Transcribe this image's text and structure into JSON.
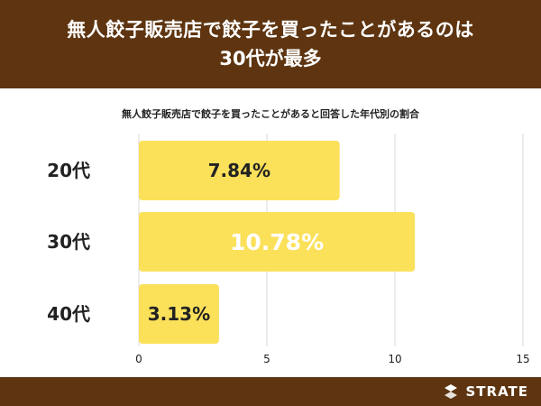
{
  "header": {
    "title_line1": "無人餃子販売店で餃子を買ったことがあるのは",
    "title_line2": "30代が最多"
  },
  "chart_data": {
    "type": "bar",
    "orientation": "horizontal",
    "title": "無人餃子販売店で餃子を買ったことがあると回答した年代別の割合",
    "categories": [
      "20代",
      "30代",
      "40代"
    ],
    "values": [
      7.84,
      10.78,
      3.13
    ],
    "value_labels": [
      "7.84%",
      "10.78%",
      "3.13%"
    ],
    "xlim": [
      0,
      15
    ],
    "x_ticks": [
      "0",
      "5",
      "10",
      "15"
    ],
    "grid": true,
    "bar_color": "#fbe05a"
  },
  "footer": {
    "brand": "STRATE"
  },
  "colors": {
    "header_bg": "#5e3510",
    "bar": "#fbe05a",
    "grid": "#d9d9d9"
  }
}
